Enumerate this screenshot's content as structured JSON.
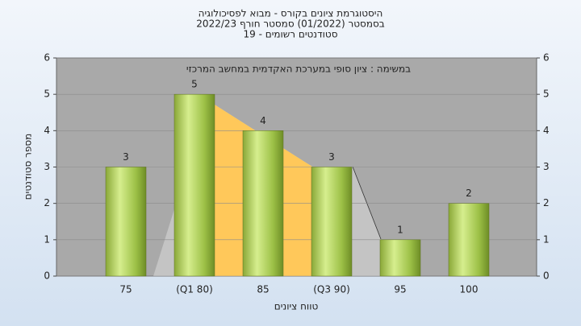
{
  "chart_data": {
    "type": "bar",
    "title": [
      "היסטוגרמת ציונים בקורס - מבוא לפסיכולוגיה",
      "בסמסטר  (01/2022)  סמסטר חורף 2022/23",
      "סטודנטים רשומים - 19"
    ],
    "annotation": "במשימה : ציון סופי במערכת האקדמית במחשב המרכזי",
    "x_label": "טווח ציונים",
    "y_label": "מספר סטודנטים",
    "categories": [
      "75",
      "(Q1 80)",
      "85",
      "(Q3 90)",
      "95",
      "100"
    ],
    "values": [
      3,
      5,
      4,
      3,
      1,
      2
    ],
    "ylim": [
      0,
      6
    ],
    "yticks": [
      0,
      1,
      2,
      3,
      4,
      5,
      6
    ],
    "grid": true
  }
}
